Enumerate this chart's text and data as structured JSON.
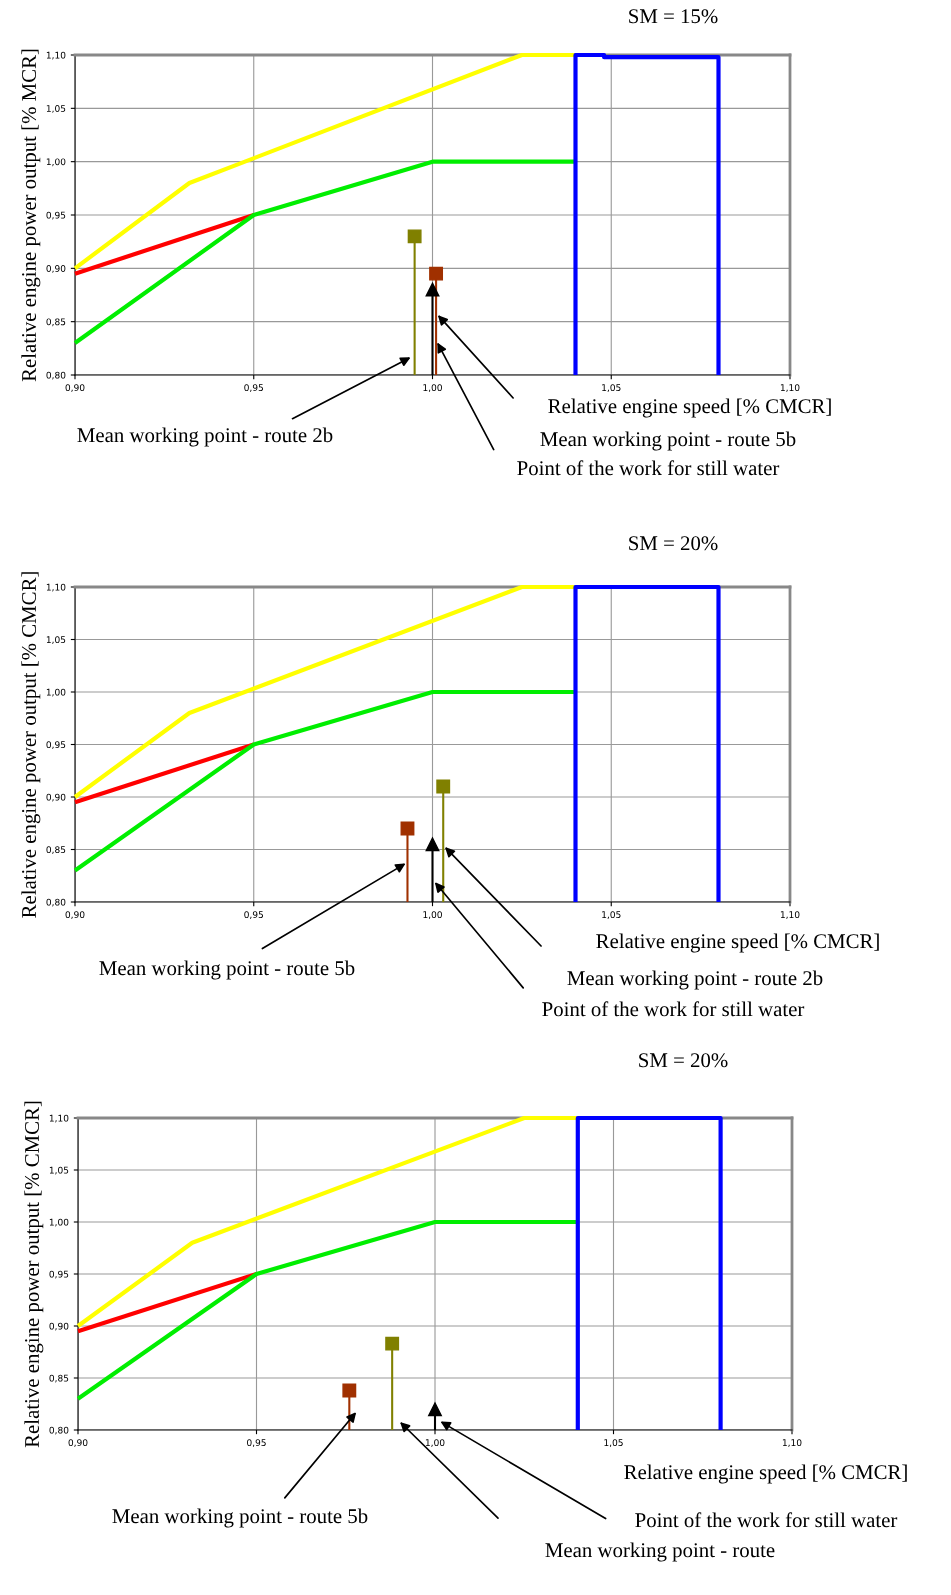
{
  "chart_data": [
    {
      "type": "line",
      "title": "SM = 15%",
      "xlabel": "Relative engine speed [% CMCR]",
      "ylabel": "Relative engine power output [% MCR]",
      "xlim": [
        0.9,
        1.1
      ],
      "ylim": [
        0.8,
        1.1
      ],
      "xticks": [
        {
          "value": 0.9,
          "label": "0,90"
        },
        {
          "value": 0.95,
          "label": "0,95"
        },
        {
          "value": 1.0,
          "label": "1,00"
        },
        {
          "value": 1.05,
          "label": "1,05"
        },
        {
          "value": 1.1,
          "label": "1,10"
        }
      ],
      "yticks": [
        {
          "value": 0.8,
          "label": "0,80"
        },
        {
          "value": 0.85,
          "label": "0,85"
        },
        {
          "value": 0.9,
          "label": "0,90"
        },
        {
          "value": 0.95,
          "label": "0,95"
        },
        {
          "value": 1.0,
          "label": "1,00"
        },
        {
          "value": 1.05,
          "label": "1,05"
        },
        {
          "value": 1.1,
          "label": "1,10"
        }
      ],
      "grid": true,
      "marker": "none",
      "line_style": "solid",
      "series": [
        {
          "color": "#ffff00",
          "x": [
            0.9,
            0.932,
            1.025,
            1.04
          ],
          "values": [
            0.9,
            0.98,
            1.1,
            1.1
          ]
        },
        {
          "color": "#ff0000",
          "x": [
            0.9,
            0.95
          ],
          "values": [
            0.895,
            0.95
          ]
        },
        {
          "color": "#00ee00",
          "x": [
            0.9,
            0.95,
            1.0,
            1.04
          ],
          "values": [
            0.83,
            0.95,
            1.0,
            1.0
          ]
        },
        {
          "color": "#0000ff",
          "x": [
            1.04,
            1.04,
            1.048,
            1.048,
            1.08,
            1.08
          ],
          "values": [
            0.8,
            1.1,
            1.1,
            1.098,
            1.098,
            0.8
          ]
        },
        {
          "type": "lollipop",
          "marker": "square",
          "color": "#808000",
          "x": [
            0.995
          ],
          "values": [
            0.93
          ]
        },
        {
          "type": "lollipop",
          "marker": "square",
          "color": "#a03000",
          "x": [
            1.001
          ],
          "values": [
            0.895
          ]
        },
        {
          "type": "lollipop",
          "marker": "triangle",
          "color": "#000000",
          "x": [
            1.0
          ],
          "values": [
            0.88
          ]
        }
      ],
      "annotations": [
        "Mean working point - route 2b",
        "Mean working point - route 5b",
        "Point of the work for still water"
      ]
    },
    {
      "type": "line",
      "title": "SM = 20%",
      "xlabel": "Relative engine speed [% CMCR]",
      "ylabel": "Relative engine power output [% CMCR]",
      "xlim": [
        0.9,
        1.1
      ],
      "ylim": [
        0.8,
        1.1
      ],
      "xticks": [
        {
          "value": 0.9,
          "label": "0,90"
        },
        {
          "value": 0.95,
          "label": "0,95"
        },
        {
          "value": 1.0,
          "label": "1,00"
        },
        {
          "value": 1.05,
          "label": "1,05"
        },
        {
          "value": 1.1,
          "label": "1,10"
        }
      ],
      "yticks": [
        {
          "value": 0.8,
          "label": "0,80"
        },
        {
          "value": 0.85,
          "label": "0,85"
        },
        {
          "value": 0.9,
          "label": "0,90"
        },
        {
          "value": 0.95,
          "label": "0,95"
        },
        {
          "value": 1.0,
          "label": "1,00"
        },
        {
          "value": 1.05,
          "label": "1,05"
        },
        {
          "value": 1.1,
          "label": "1,10"
        }
      ],
      "grid": true,
      "marker": "none",
      "line_style": "solid",
      "series": [
        {
          "color": "#ffff00",
          "x": [
            0.9,
            0.932,
            1.025,
            1.04
          ],
          "values": [
            0.9,
            0.98,
            1.1,
            1.1
          ]
        },
        {
          "color": "#ff0000",
          "x": [
            0.9,
            0.95
          ],
          "values": [
            0.895,
            0.95
          ]
        },
        {
          "color": "#00ee00",
          "x": [
            0.9,
            0.95,
            1.0,
            1.04
          ],
          "values": [
            0.83,
            0.95,
            1.0,
            1.0
          ]
        },
        {
          "color": "#0000ff",
          "x": [
            1.04,
            1.04,
            1.08,
            1.08
          ],
          "values": [
            0.8,
            1.1,
            1.1,
            0.8
          ]
        },
        {
          "type": "lollipop",
          "marker": "square",
          "color": "#a03000",
          "x": [
            0.993
          ],
          "values": [
            0.87
          ]
        },
        {
          "type": "lollipop",
          "marker": "square",
          "color": "#808000",
          "x": [
            1.003
          ],
          "values": [
            0.91
          ]
        },
        {
          "type": "lollipop",
          "marker": "triangle",
          "color": "#000000",
          "x": [
            1.0
          ],
          "values": [
            0.855
          ]
        }
      ],
      "annotations": [
        "Mean working point - route 5b",
        "Mean working point - route 2b",
        "Point of the work for still water"
      ]
    },
    {
      "type": "line",
      "title": "SM = 20%",
      "xlabel": "Relative engine speed [% CMCR]",
      "ylabel": "Relative engine power output [% CMCR]",
      "xlim": [
        0.9,
        1.1
      ],
      "ylim": [
        0.8,
        1.1
      ],
      "xticks": [
        {
          "value": 0.9,
          "label": "0,90"
        },
        {
          "value": 0.95,
          "label": "0,95"
        },
        {
          "value": 1.0,
          "label": "1,00"
        },
        {
          "value": 1.05,
          "label": "1,05"
        },
        {
          "value": 1.1,
          "label": "1,10"
        }
      ],
      "yticks": [
        {
          "value": 0.8,
          "label": "0,80"
        },
        {
          "value": 0.85,
          "label": "0,85"
        },
        {
          "value": 0.9,
          "label": "0,90"
        },
        {
          "value": 0.95,
          "label": "0,95"
        },
        {
          "value": 1.0,
          "label": "1,00"
        },
        {
          "value": 1.05,
          "label": "1,05"
        },
        {
          "value": 1.1,
          "label": "1,10"
        }
      ],
      "grid": true,
      "marker": "none",
      "line_style": "solid",
      "series": [
        {
          "color": "#ffff00",
          "x": [
            0.9,
            0.932,
            1.025,
            1.04
          ],
          "values": [
            0.9,
            0.98,
            1.1,
            1.1
          ]
        },
        {
          "color": "#ff0000",
          "x": [
            0.9,
            0.95
          ],
          "values": [
            0.895,
            0.95
          ]
        },
        {
          "color": "#00ee00",
          "x": [
            0.9,
            0.95,
            1.0,
            1.04
          ],
          "values": [
            0.83,
            0.95,
            1.0,
            1.0
          ]
        },
        {
          "color": "#0000ff",
          "x": [
            1.04,
            1.04,
            1.08,
            1.08
          ],
          "values": [
            0.8,
            1.1,
            1.1,
            0.8
          ]
        },
        {
          "type": "lollipop",
          "marker": "square",
          "color": "#a03000",
          "x": [
            0.976
          ],
          "values": [
            0.838
          ]
        },
        {
          "type": "lollipop",
          "marker": "square",
          "color": "#808000",
          "x": [
            0.988
          ],
          "values": [
            0.883
          ]
        },
        {
          "type": "lollipop",
          "marker": "triangle",
          "color": "#000000",
          "x": [
            1.0
          ],
          "values": [
            0.82
          ]
        }
      ],
      "annotations": [
        "Mean working point - route 5b",
        "Mean working point - route",
        "Point of the work for still water"
      ]
    }
  ]
}
